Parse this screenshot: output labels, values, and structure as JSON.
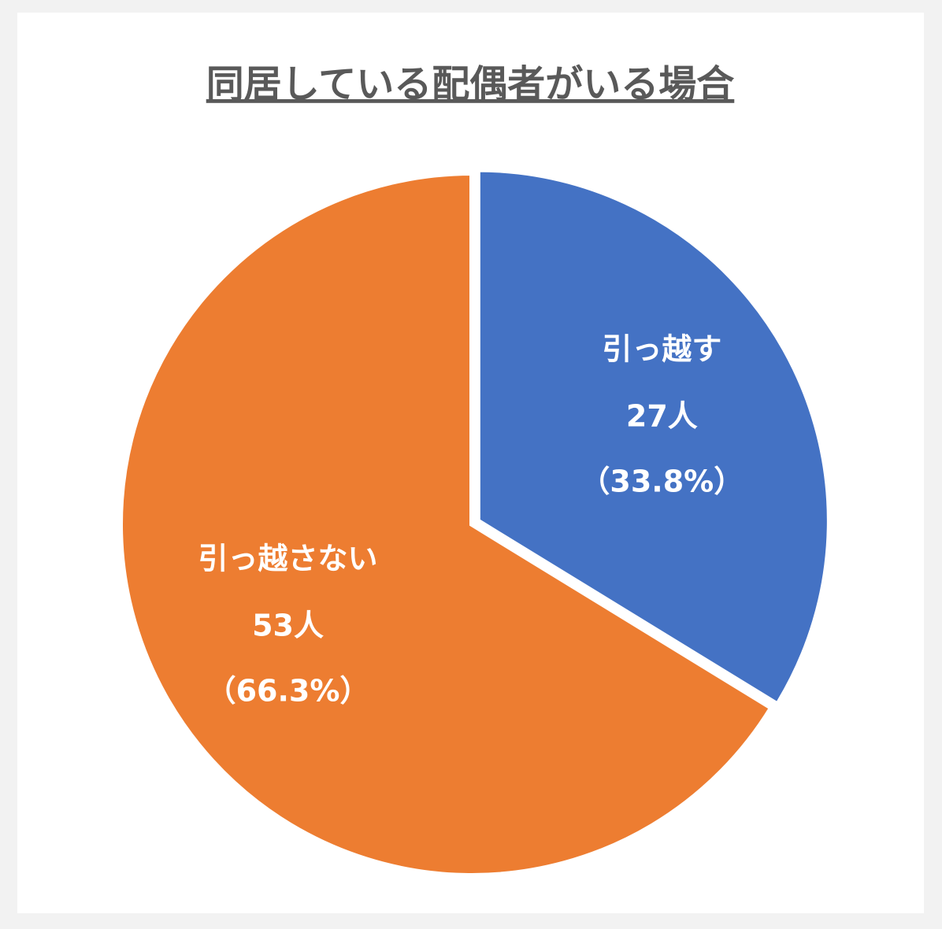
{
  "chart_data": {
    "type": "pie",
    "title": "同居している配偶者がいる場合",
    "categories": [
      "引っ越す",
      "引っ越さない"
    ],
    "values": [
      27,
      53
    ],
    "value_labels": [
      "27人",
      "53人"
    ],
    "percentages": [
      33.8,
      66.3
    ],
    "percentage_labels": [
      "（33.8%）",
      "（66.3%）"
    ],
    "colors": [
      "#4472c4",
      "#ed7d31"
    ]
  }
}
